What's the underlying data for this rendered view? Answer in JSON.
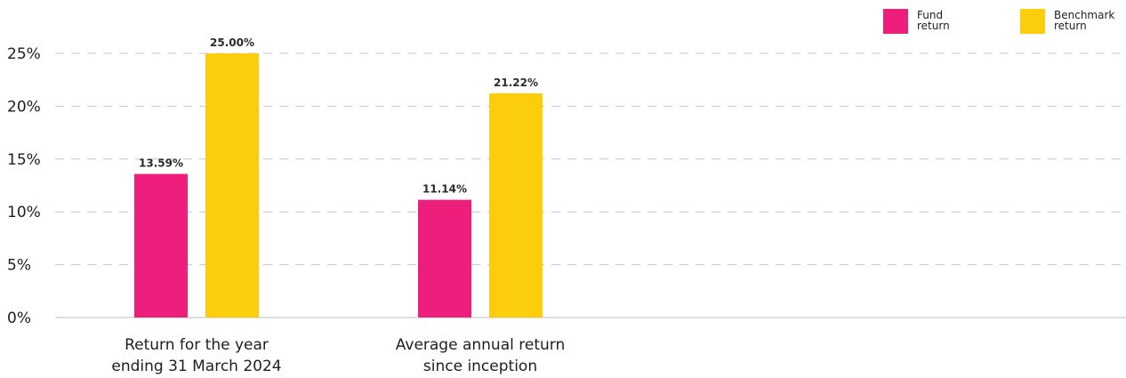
{
  "chart_data": {
    "type": "bar",
    "title": "",
    "categories": [
      [
        "Return for the year",
        "ending 31 March 2024"
      ],
      [
        "Average annual return",
        "since inception"
      ]
    ],
    "series": [
      {
        "name": "Fund return",
        "values": [
          13.59,
          11.14
        ],
        "labels": [
          "13.59%",
          "11.14%"
        ],
        "color": "#ee1f7c"
      },
      {
        "name": "Benchmark return",
        "values": [
          25.0,
          21.22
        ],
        "labels": [
          "25.00%",
          "21.22%"
        ],
        "color": "#fccd0a"
      }
    ],
    "xlabel": "",
    "ylabel": "",
    "ylim": [
      0,
      25
    ],
    "yticks": [
      0,
      5,
      10,
      15,
      20,
      25
    ],
    "ytick_labels": [
      "0%",
      "5%",
      "10%",
      "15%",
      "20%",
      "25%"
    ],
    "grid": true,
    "grid_style": "dashed",
    "legend_position": "top-right"
  },
  "legend": {
    "fund": {
      "line1": "Fund",
      "line2": "return"
    },
    "benchmark": {
      "line1": "Benchmark",
      "line2": "return"
    }
  },
  "colors": {
    "fund": "#ee1f7c",
    "benchmark": "#fccd0a",
    "title": "#ee1f7c",
    "grid": "#c6c6c6",
    "text": "#1e1e1e"
  }
}
